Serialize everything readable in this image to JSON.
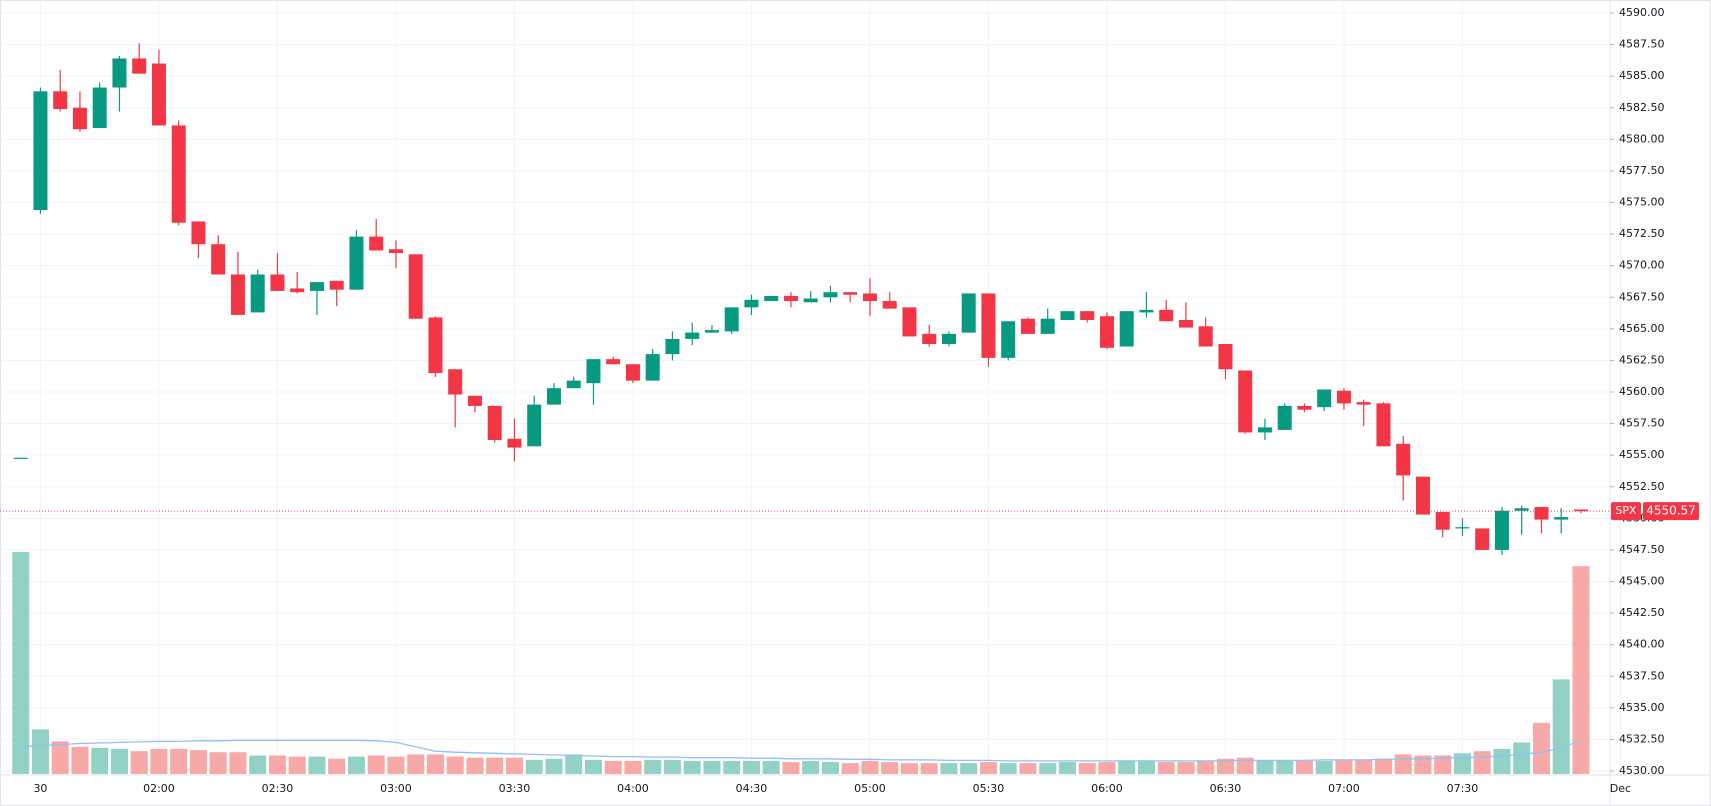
{
  "chart_data": {
    "type": "candlestick",
    "symbol": "SPX",
    "categories": [
      null,
      "30",
      null,
      null,
      null,
      null,
      null,
      "02:00",
      null,
      null,
      null,
      null,
      null,
      "02:30",
      null,
      null,
      null,
      null,
      null,
      "03:00",
      null,
      null,
      null,
      null,
      null,
      "03:30",
      null,
      null,
      null,
      null,
      null,
      "04:00",
      null,
      null,
      null,
      null,
      null,
      "04:30",
      null,
      null,
      null,
      null,
      null,
      "05:00",
      null,
      null,
      null,
      null,
      null,
      "05:30",
      null,
      null,
      null,
      null,
      null,
      "06:00",
      null,
      null,
      null,
      null,
      null,
      "06:30",
      null,
      null,
      null,
      null,
      null,
      "07:00",
      null,
      null,
      null,
      null,
      null,
      "07:30",
      null,
      null,
      null,
      null,
      null,
      null
    ],
    "period_end_label": "Dec",
    "open": [
      4554.8,
      4574.4,
      4583.8,
      4582.5,
      4580.9,
      4584.1,
      4586.4,
      4586.0,
      4581.1,
      4573.5,
      4571.7,
      4569.3,
      4566.3,
      4569.3,
      4568.2,
      4568.0,
      4568.8,
      4568.1,
      4572.3,
      4571.3,
      4570.9,
      4565.9,
      4561.8,
      4559.7,
      4558.9,
      4556.3,
      4555.7,
      4559.0,
      4560.3,
      4560.7,
      4562.6,
      4562.2,
      4560.9,
      4563.0,
      4564.2,
      4564.7,
      4564.8,
      4566.7,
      4567.2,
      4567.6,
      4567.1,
      4567.5,
      4567.9,
      4567.8,
      4567.2,
      4566.7,
      4564.6,
      4563.8,
      4564.7,
      4567.8,
      4562.7,
      4565.8,
      4564.6,
      4565.7,
      4566.4,
      4566.0,
      4563.6,
      4566.3,
      4566.5,
      4565.7,
      4565.2,
      4563.8,
      4561.7,
      4556.8,
      4557.0,
      4558.9,
      4558.8,
      4560.1,
      4559.2,
      4559.1,
      4555.9,
      4553.3,
      4550.5,
      4549.2,
      4549.2,
      4547.5,
      4550.6,
      4550.9,
      4549.9,
      4550.7
    ],
    "high": [
      4554.8,
      4584.1,
      4585.5,
      4583.8,
      4584.5,
      4586.6,
      4587.6,
      4587.1,
      4581.5,
      4573.5,
      4572.4,
      4571.1,
      4569.7,
      4571.0,
      4569.5,
      4568.7,
      4568.8,
      4572.8,
      4573.7,
      4572.0,
      4570.9,
      4566.0,
      4561.8,
      4559.7,
      4558.9,
      4557.9,
      4559.7,
      4560.7,
      4561.2,
      4562.6,
      4562.8,
      4562.2,
      4563.4,
      4564.8,
      4565.5,
      4565.3,
      4566.7,
      4567.7,
      4567.6,
      4567.9,
      4568.0,
      4568.4,
      4567.9,
      4569.0,
      4567.9,
      4566.7,
      4565.3,
      4564.8,
      4567.8,
      4567.8,
      4565.6,
      4565.9,
      4566.6,
      4566.4,
      4566.4,
      4566.3,
      4566.4,
      4567.9,
      4567.3,
      4567.1,
      4565.9,
      4563.8,
      4561.7,
      4557.9,
      4559.1,
      4559.1,
      4560.2,
      4560.3,
      4559.4,
      4559.2,
      4556.5,
      4553.3,
      4550.5,
      4550.0,
      4549.2,
      4550.9,
      4551.0,
      4550.9,
      4550.8,
      4550.7
    ],
    "low": [
      4554.8,
      4574.1,
      4582.2,
      4580.6,
      4580.9,
      4582.2,
      4585.2,
      4581.1,
      4573.2,
      4570.6,
      4569.3,
      4566.1,
      4566.3,
      4568.0,
      4567.8,
      4566.1,
      4566.8,
      4568.1,
      4571.2,
      4569.8,
      4565.8,
      4561.2,
      4557.2,
      4558.4,
      4556.0,
      4554.5,
      4555.7,
      4559.0,
      4560.3,
      4559.0,
      4562.2,
      4560.7,
      4560.9,
      4562.5,
      4563.7,
      4564.7,
      4564.6,
      4566.1,
      4567.2,
      4566.7,
      4567.1,
      4567.1,
      4567.1,
      4566.0,
      4566.6,
      4564.4,
      4563.6,
      4563.6,
      4564.7,
      4562.0,
      4562.5,
      4564.6,
      4564.6,
      4565.7,
      4565.5,
      4563.4,
      4563.6,
      4565.9,
      4565.6,
      4565.1,
      4563.6,
      4561.0,
      4556.7,
      4556.2,
      4557.0,
      4558.4,
      4558.5,
      4558.6,
      4557.3,
      4555.7,
      4551.4,
      4550.3,
      4548.5,
      4548.6,
      4547.5,
      4547.1,
      4548.7,
      4548.8,
      4548.8,
      4550.4
    ],
    "close": [
      4554.8,
      4583.8,
      4582.4,
      4580.8,
      4584.1,
      4586.4,
      4585.2,
      4581.1,
      4573.4,
      4571.7,
      4569.3,
      4566.1,
      4569.3,
      4568.0,
      4567.9,
      4568.7,
      4568.1,
      4572.3,
      4571.2,
      4571.0,
      4565.8,
      4561.5,
      4559.8,
      4558.9,
      4556.2,
      4555.6,
      4559.0,
      4560.3,
      4560.9,
      4562.6,
      4562.2,
      4560.9,
      4563.0,
      4564.2,
      4564.7,
      4564.9,
      4566.7,
      4567.3,
      4567.6,
      4567.2,
      4567.4,
      4567.9,
      4567.7,
      4567.2,
      4566.6,
      4564.4,
      4563.8,
      4564.6,
      4567.8,
      4562.7,
      4565.6,
      4564.6,
      4565.8,
      4566.4,
      4565.7,
      4563.5,
      4566.4,
      4566.5,
      4565.6,
      4565.1,
      4563.6,
      4561.8,
      4556.8,
      4557.2,
      4558.9,
      4558.6,
      4560.2,
      4559.1,
      4559.0,
      4555.7,
      4553.4,
      4550.3,
      4549.1,
      4549.3,
      4547.5,
      4550.6,
      4550.8,
      4549.9,
      4550.1,
      4550.57
    ],
    "volume": [
      204,
      41,
      30,
      25,
      24,
      23,
      21,
      23,
      23,
      22,
      20,
      20,
      17,
      17,
      16,
      16,
      14,
      16,
      17,
      16,
      18,
      18,
      16,
      15,
      15,
      15,
      13,
      14,
      18,
      13,
      12,
      12,
      13,
      13,
      12,
      12,
      12,
      12,
      12,
      11,
      12,
      11,
      10,
      12,
      11,
      10,
      10,
      10,
      10,
      11,
      10,
      10,
      10,
      11,
      10,
      11,
      12,
      12,
      11,
      11,
      12,
      14,
      15,
      12,
      12,
      12,
      12,
      13,
      13,
      14,
      18,
      17,
      17,
      19,
      21,
      23,
      29,
      47,
      87,
      191
    ],
    "volume_ma": [
      25,
      26,
      27,
      28,
      28.5,
      29,
      29.5,
      30,
      30,
      30.5,
      30.5,
      31,
      31,
      31,
      31,
      31,
      31,
      31,
      30.5,
      29,
      25,
      21,
      20,
      19.5,
      19,
      18.5,
      18,
      17.5,
      17,
      16.5,
      16,
      16,
      15.5,
      15.5,
      15,
      15,
      15,
      14.5,
      14.5,
      14,
      14,
      14,
      13.5,
      13.5,
      13,
      13,
      13,
      12.5,
      12.5,
      12.5,
      12,
      12,
      12,
      12,
      12,
      12,
      12,
      12,
      12,
      12,
      12,
      12,
      12.5,
      12.5,
      12.5,
      12.5,
      13,
      13,
      13,
      13.5,
      14,
      14,
      14.5,
      15,
      15.5,
      16.5,
      18,
      20,
      24,
      31
    ],
    "up_color": "#089981",
    "down_color": "#f23645",
    "volume_up_color": "#92d2c6",
    "volume_down_color": "#f7a9a7",
    "volume_ma_color": "#90bff9",
    "last_price": 4550.57,
    "ylim": [
      4530,
      4590
    ],
    "yticks": [
      {
        "value": 4530,
        "label": "4530.00"
      },
      {
        "value": 4532.5,
        "label": "4532.50"
      },
      {
        "value": 4535,
        "label": "4535.00"
      },
      {
        "value": 4537.5,
        "label": "4537.50"
      },
      {
        "value": 4540,
        "label": "4540.00"
      },
      {
        "value": 4542.5,
        "label": "4542.50"
      },
      {
        "value": 4545,
        "label": "4545.00"
      },
      {
        "value": 4547.5,
        "label": "4547.50"
      },
      {
        "value": 4550,
        "label": "4550.00"
      },
      {
        "value": 4552.5,
        "label": "4552.50"
      },
      {
        "value": 4555,
        "label": "4555.00"
      },
      {
        "value": 4557.5,
        "label": "4557.50"
      },
      {
        "value": 4560,
        "label": "4560.00"
      },
      {
        "value": 4562.5,
        "label": "4562.50"
      },
      {
        "value": 4565,
        "label": "4565.00"
      },
      {
        "value": 4567.5,
        "label": "4567.50"
      },
      {
        "value": 4570,
        "label": "4570.00"
      },
      {
        "value": 4572.5,
        "label": "4572.50"
      },
      {
        "value": 4575,
        "label": "4575.00"
      },
      {
        "value": 4577.5,
        "label": "4577.50"
      },
      {
        "value": 4580,
        "label": "4580.00"
      },
      {
        "value": 4582.5,
        "label": "4582.50"
      },
      {
        "value": 4585,
        "label": "4585.00"
      },
      {
        "value": 4587.5,
        "label": "4587.50"
      },
      {
        "value": 4590,
        "label": "4590.00"
      }
    ],
    "volume_ylim": [
      0,
      250
    ],
    "grid": true
  }
}
